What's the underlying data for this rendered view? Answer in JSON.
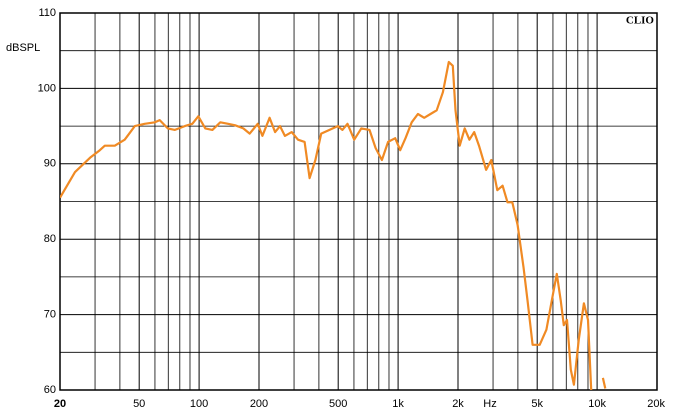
{
  "chart_data": {
    "type": "line",
    "y_label": "dBSPL",
    "brand": "CLIO",
    "x_unit": "Hz",
    "log_x": true,
    "grid": true,
    "xlim": [
      20,
      20000
    ],
    "ylim": [
      60,
      110
    ],
    "xticks": [
      20,
      50,
      100,
      200,
      500,
      {
        "value": 1000,
        "label": "1k"
      },
      {
        "value": 2000,
        "label": "2k"
      },
      {
        "value": 5000,
        "label": "5k"
      },
      {
        "value": 10000,
        "label": "10k"
      },
      {
        "value": 20000,
        "label": "20k"
      }
    ],
    "yticks": [
      60,
      70,
      80,
      90,
      100,
      110
    ],
    "x_grid": [
      30,
      40,
      60,
      70,
      80,
      90,
      300,
      400,
      600,
      700,
      800,
      900,
      3000,
      4000,
      6000,
      7000,
      8000,
      9000
    ],
    "y_grid": [
      65,
      75,
      85,
      95,
      105
    ],
    "color": "#f08a24",
    "x": [
      20,
      23.8,
      28.3,
      31.7,
      33.6,
      37.7,
      42.3,
      47.5,
      53.3,
      60,
      63.4,
      69.6,
      75.6,
      84.8,
      92.4,
      99.1,
      107.5,
      116.6,
      127.8,
      139.9,
      151.9,
      166.8,
      179.6,
      197,
      208,
      226,
      241,
      255,
      270,
      292,
      314,
      339,
      359,
      384,
      411,
      452,
      497,
      525,
      557,
      602,
      653,
      718,
      771,
      829,
      891,
      967,
      1025,
      1090,
      1171,
      1257,
      1353,
      1455,
      1563,
      1680,
      1797,
      1883,
      1944,
      2040,
      2160,
      2282,
      2412,
      2550,
      2770,
      2940,
      3150,
      3350,
      3545,
      3750,
      3985,
      4270,
      4470,
      4740,
      5150,
      5560,
      6060,
      6270,
      6560,
      6800,
      7060,
      7380,
      7650,
      8080,
      8580,
      9000,
      9340,
      10400,
      10700,
      11000
    ],
    "values": [
      85.5,
      88.9,
      90.8,
      91.8,
      92.4,
      92.4,
      93.2,
      95.0,
      95.3,
      95.5,
      95.8,
      94.7,
      94.5,
      95.0,
      95.3,
      96.3,
      94.7,
      94.5,
      95.5,
      95.3,
      95.1,
      94.7,
      94.0,
      95.3,
      93.7,
      96.1,
      94.2,
      95.0,
      93.7,
      94.2,
      93.2,
      92.9,
      88.1,
      90.5,
      94.0,
      94.5,
      95.0,
      94.5,
      95.3,
      93.2,
      94.7,
      94.5,
      92.1,
      90.5,
      92.9,
      93.4,
      91.8,
      93.4,
      95.5,
      96.6,
      96.1,
      96.6,
      97.1,
      99.5,
      103.5,
      103.0,
      97.1,
      92.4,
      94.7,
      93.2,
      94.2,
      92.4,
      89.2,
      90.5,
      86.5,
      87.1,
      84.9,
      84.9,
      81.9,
      76.2,
      71.9,
      66.0,
      66.0,
      68.0,
      73.3,
      75.4,
      71.9,
      68.6,
      69.3,
      62.7,
      60.7,
      66.6,
      71.5,
      69.3,
      60,
      null,
      61.6,
      60.2
    ]
  }
}
